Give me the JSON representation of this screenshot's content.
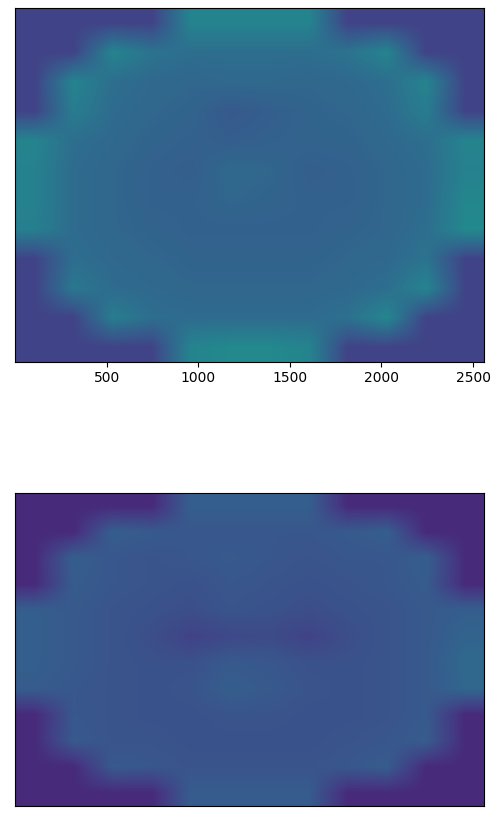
{
  "chart_data": [
    {
      "type": "image",
      "tick_labels": "x",
      "color": "viridis",
      "xlim": [
        0,
        2560
      ],
      "ylim": [
        2560,
        0
      ],
      "xticks": [
        500,
        1000,
        1500,
        2000,
        2500
      ],
      "color_range": [
        0,
        1
      ],
      "cells": [
        [
          0.2,
          0.2,
          0.2,
          0.2,
          0.45,
          0.45,
          0.45,
          0.45,
          0.2,
          0.2,
          0.2,
          0.2
        ],
        [
          0.2,
          0.2,
          0.45,
          0.38,
          0.36,
          0.36,
          0.36,
          0.36,
          0.38,
          0.45,
          0.2,
          0.2
        ],
        [
          0.2,
          0.45,
          0.36,
          0.34,
          0.33,
          0.34,
          0.34,
          0.33,
          0.34,
          0.36,
          0.45,
          0.2
        ],
        [
          0.2,
          0.42,
          0.35,
          0.33,
          0.32,
          0.28,
          0.3,
          0.32,
          0.33,
          0.35,
          0.42,
          0.2
        ],
        [
          0.45,
          0.36,
          0.34,
          0.32,
          0.31,
          0.3,
          0.31,
          0.32,
          0.32,
          0.34,
          0.36,
          0.45
        ],
        [
          0.44,
          0.35,
          0.33,
          0.31,
          0.3,
          0.34,
          0.33,
          0.3,
          0.31,
          0.33,
          0.35,
          0.44
        ],
        [
          0.44,
          0.35,
          0.33,
          0.31,
          0.31,
          0.33,
          0.32,
          0.31,
          0.31,
          0.33,
          0.35,
          0.46
        ],
        [
          0.43,
          0.35,
          0.33,
          0.32,
          0.31,
          0.31,
          0.31,
          0.31,
          0.32,
          0.33,
          0.36,
          0.47
        ],
        [
          0.2,
          0.36,
          0.34,
          0.33,
          0.32,
          0.32,
          0.32,
          0.32,
          0.33,
          0.34,
          0.38,
          0.2
        ],
        [
          0.2,
          0.4,
          0.35,
          0.34,
          0.33,
          0.33,
          0.33,
          0.33,
          0.34,
          0.36,
          0.45,
          0.2
        ],
        [
          0.2,
          0.2,
          0.42,
          0.36,
          0.35,
          0.35,
          0.35,
          0.35,
          0.37,
          0.46,
          0.2,
          0.2
        ],
        [
          0.2,
          0.2,
          0.2,
          0.2,
          0.45,
          0.47,
          0.47,
          0.45,
          0.2,
          0.2,
          0.2,
          0.2
        ]
      ]
    },
    {
      "type": "image",
      "tick_labels": false,
      "color": "viridis",
      "xlim": [
        0,
        2560
      ],
      "ylim": [
        2560,
        0
      ],
      "color_range": [
        0,
        1
      ],
      "cells": [
        [
          0.12,
          0.12,
          0.12,
          0.12,
          0.3,
          0.3,
          0.3,
          0.3,
          0.12,
          0.12,
          0.12,
          0.12
        ],
        [
          0.12,
          0.12,
          0.3,
          0.28,
          0.27,
          0.27,
          0.27,
          0.27,
          0.28,
          0.3,
          0.12,
          0.12
        ],
        [
          0.12,
          0.3,
          0.27,
          0.26,
          0.27,
          0.28,
          0.27,
          0.26,
          0.27,
          0.27,
          0.3,
          0.12
        ],
        [
          0.12,
          0.29,
          0.27,
          0.26,
          0.25,
          0.27,
          0.26,
          0.25,
          0.26,
          0.27,
          0.29,
          0.12
        ],
        [
          0.3,
          0.28,
          0.26,
          0.25,
          0.24,
          0.26,
          0.25,
          0.24,
          0.25,
          0.26,
          0.28,
          0.3
        ],
        [
          0.3,
          0.28,
          0.26,
          0.24,
          0.2,
          0.22,
          0.23,
          0.2,
          0.24,
          0.26,
          0.28,
          0.32
        ],
        [
          0.3,
          0.28,
          0.26,
          0.25,
          0.25,
          0.28,
          0.27,
          0.25,
          0.25,
          0.26,
          0.28,
          0.34
        ],
        [
          0.29,
          0.27,
          0.26,
          0.25,
          0.26,
          0.3,
          0.28,
          0.26,
          0.25,
          0.26,
          0.28,
          0.33
        ],
        [
          0.12,
          0.27,
          0.26,
          0.25,
          0.25,
          0.26,
          0.26,
          0.25,
          0.25,
          0.26,
          0.28,
          0.12
        ],
        [
          0.12,
          0.28,
          0.26,
          0.26,
          0.25,
          0.25,
          0.25,
          0.25,
          0.26,
          0.27,
          0.29,
          0.12
        ],
        [
          0.12,
          0.12,
          0.28,
          0.27,
          0.26,
          0.26,
          0.26,
          0.26,
          0.27,
          0.29,
          0.12,
          0.12
        ],
        [
          0.12,
          0.12,
          0.12,
          0.12,
          0.29,
          0.29,
          0.29,
          0.29,
          0.12,
          0.12,
          0.12,
          0.12
        ]
      ]
    }
  ]
}
